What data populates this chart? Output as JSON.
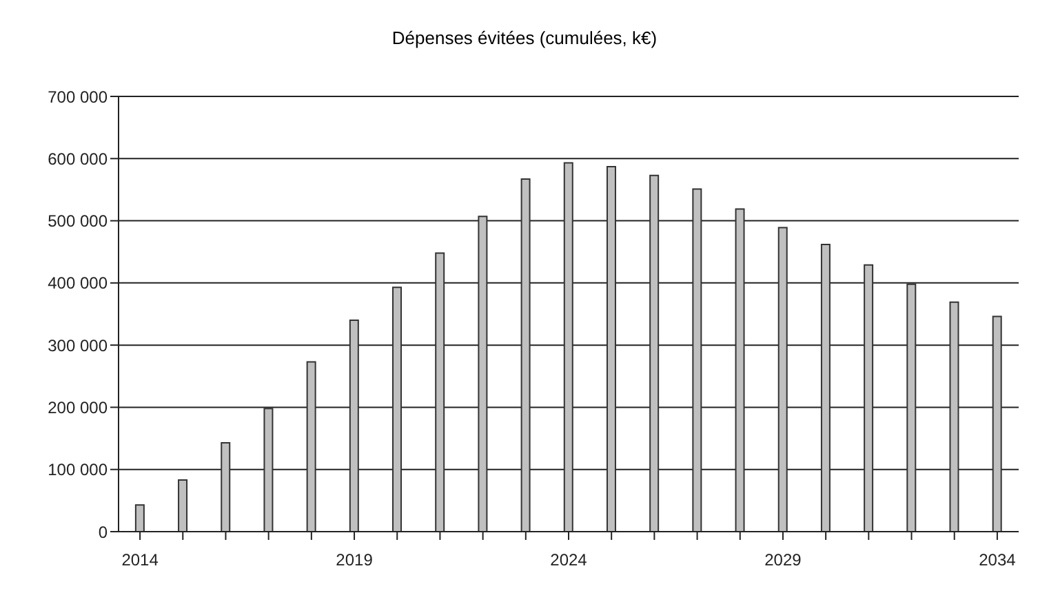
{
  "chart_data": {
    "type": "bar",
    "title": "Dépenses évitées (cumulées, k€)",
    "categories": [
      "2014",
      null,
      null,
      null,
      null,
      "2019",
      null,
      null,
      null,
      null,
      "2024",
      null,
      null,
      null,
      null,
      "2029",
      null,
      null,
      null,
      null,
      "2034"
    ],
    "values": [
      43000,
      83000,
      143000,
      198000,
      273000,
      340000,
      393000,
      448000,
      507000,
      567000,
      593000,
      587000,
      573000,
      551000,
      519000,
      489000,
      462000,
      429000,
      398000,
      369000,
      346000
    ],
    "color": "#c0c0c0",
    "ylim": [
      0,
      700000
    ],
    "yticks": [
      0,
      {
        "value": 100000,
        "label": "100 000"
      },
      {
        "value": 200000,
        "label": "200 000"
      },
      {
        "value": 300000,
        "label": "300 000"
      },
      {
        "value": 400000,
        "label": "400 000"
      },
      {
        "value": 500000,
        "label": "500 000"
      },
      {
        "value": 600000,
        "label": "600 000"
      },
      {
        "value": 700000,
        "label": "700 000"
      }
    ],
    "grid": "y",
    "legend": false
  }
}
